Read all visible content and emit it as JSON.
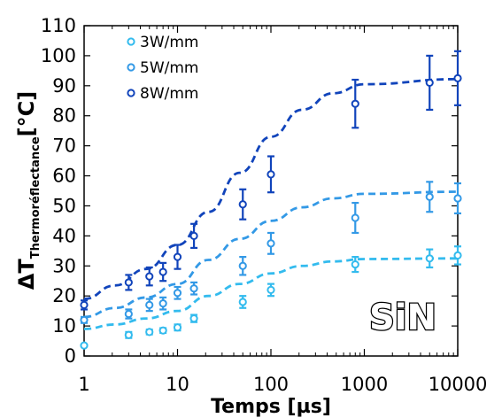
{
  "chart_data": {
    "type": "scatter",
    "xlabel": "Temps [µs]",
    "ylabel_main": "ΔT",
    "ylabel_sub": "Thermoréflectance",
    "ylabel_unit": "[°C]",
    "xscale": "log",
    "xlim": [
      1,
      10000
    ],
    "ylim": [
      0,
      110
    ],
    "x_ticks": [
      "1",
      "10",
      "100",
      "1000",
      "10000"
    ],
    "y_ticks": [
      "0",
      "10",
      "20",
      "30",
      "40",
      "50",
      "60",
      "70",
      "80",
      "90",
      "100",
      "110"
    ],
    "grid": false,
    "legend_position": "top-left",
    "annotation": "SiN",
    "series": [
      {
        "name": "3W/mm",
        "color": "#33bbee",
        "points": [
          {
            "x": 1,
            "y": 3.5,
            "err": 0
          },
          {
            "x": 3,
            "y": 7,
            "err": 1
          },
          {
            "x": 5,
            "y": 8,
            "err": 0.8
          },
          {
            "x": 7,
            "y": 8.5,
            "err": 0.8
          },
          {
            "x": 10,
            "y": 9.5,
            "err": 1
          },
          {
            "x": 15,
            "y": 12.5,
            "err": 1.2
          },
          {
            "x": 50,
            "y": 18,
            "err": 2
          },
          {
            "x": 100,
            "y": 22,
            "err": 2
          },
          {
            "x": 800,
            "y": 30.5,
            "err": 2.5
          },
          {
            "x": 5000,
            "y": 32.5,
            "err": 3
          },
          {
            "x": 10000,
            "y": 33.5,
            "err": 3
          }
        ],
        "fit_y": [
          9,
          10.5,
          12.5,
          15,
          20,
          24,
          27.5,
          30,
          31.5,
          32.3,
          32.5
        ]
      },
      {
        "name": "5W/mm",
        "color": "#3399e6",
        "points": [
          {
            "x": 1,
            "y": 12,
            "err": 1
          },
          {
            "x": 3,
            "y": 14,
            "err": 1.5
          },
          {
            "x": 5,
            "y": 17,
            "err": 2
          },
          {
            "x": 7,
            "y": 17.5,
            "err": 2
          },
          {
            "x": 10,
            "y": 21,
            "err": 2
          },
          {
            "x": 15,
            "y": 22.5,
            "err": 2
          },
          {
            "x": 50,
            "y": 30,
            "err": 3
          },
          {
            "x": 100,
            "y": 37.5,
            "err": 3.5
          },
          {
            "x": 800,
            "y": 46,
            "err": 5
          },
          {
            "x": 5000,
            "y": 53,
            "err": 5
          },
          {
            "x": 10000,
            "y": 52.5,
            "err": 5
          }
        ],
        "fit_y": [
          13,
          16,
          19.5,
          24,
          32,
          39,
          45,
          49.5,
          52.5,
          54,
          54.7
        ]
      },
      {
        "name": "8W/mm",
        "color": "#1144bb",
        "points": [
          {
            "x": 1,
            "y": 17,
            "err": 1.5
          },
          {
            "x": 3,
            "y": 24.5,
            "err": 2.5
          },
          {
            "x": 5,
            "y": 26.5,
            "err": 3
          },
          {
            "x": 7,
            "y": 28,
            "err": 3
          },
          {
            "x": 10,
            "y": 33,
            "err": 4
          },
          {
            "x": 15,
            "y": 40,
            "err": 4
          },
          {
            "x": 50,
            "y": 50.5,
            "err": 5
          },
          {
            "x": 100,
            "y": 60.5,
            "err": 6
          },
          {
            "x": 800,
            "y": 84,
            "err": 8
          },
          {
            "x": 5000,
            "y": 91,
            "err": 9
          },
          {
            "x": 10000,
            "y": 92.5,
            "err": 9
          }
        ],
        "fit_y": [
          19,
          23.5,
          29,
          37,
          48,
          61,
          73,
          82,
          87.5,
          90.5,
          92.2
        ]
      }
    ],
    "fit_x": [
      1,
      2.15,
      4.64,
      10,
      21.5,
      46.4,
      100,
      215,
      464,
      1000,
      10000
    ],
    "fit_line_style": "dashed"
  }
}
